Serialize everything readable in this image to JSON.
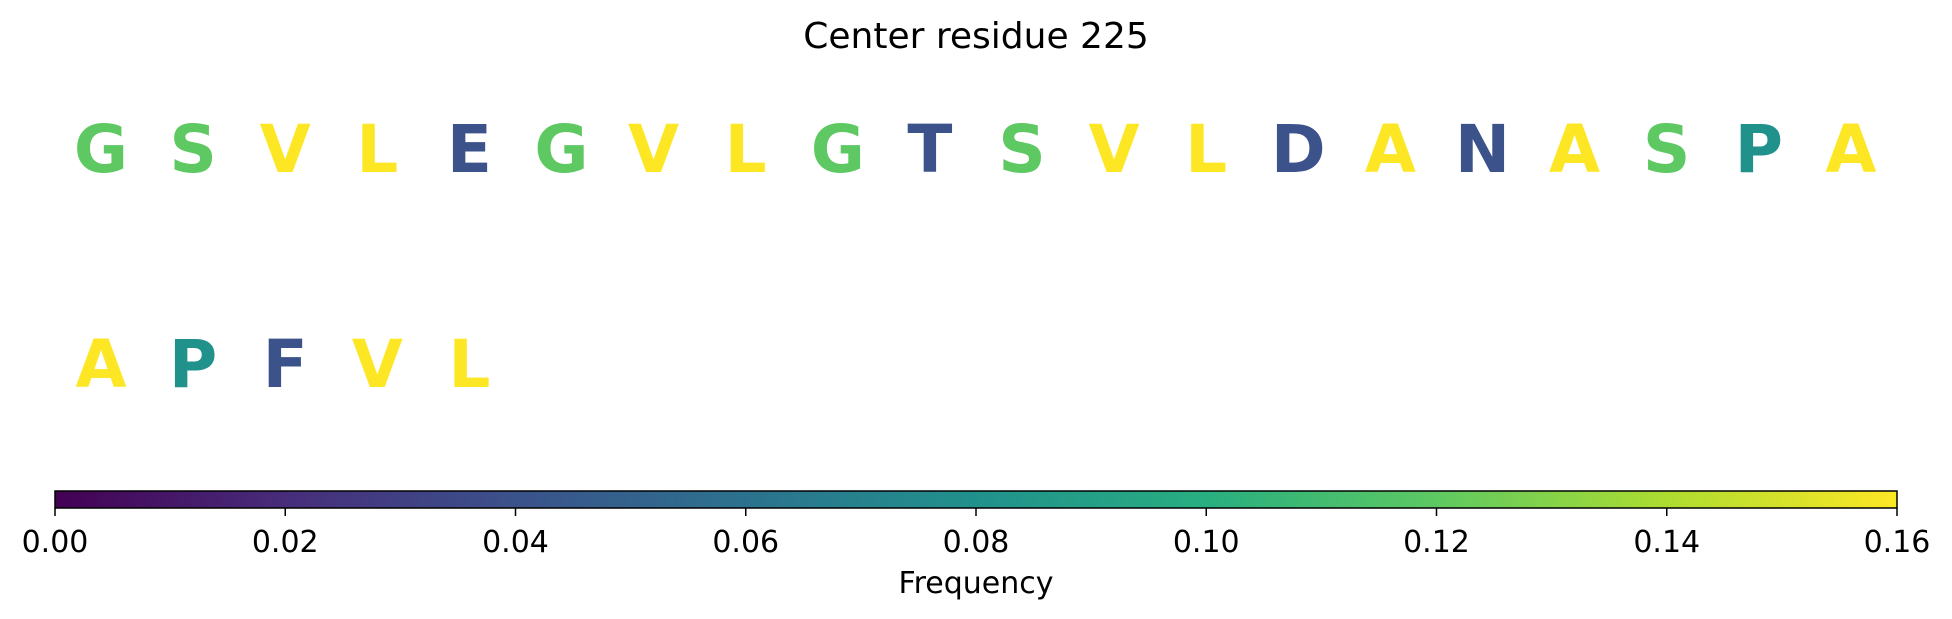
{
  "chart_data": {
    "type": "sequence-logo",
    "title": "Center residue 225",
    "residues": [
      {
        "letter": "G",
        "frequency": 0.12
      },
      {
        "letter": "S",
        "frequency": 0.12
      },
      {
        "letter": "V",
        "frequency": 0.16
      },
      {
        "letter": "L",
        "frequency": 0.16
      },
      {
        "letter": "E",
        "frequency": 0.04
      },
      {
        "letter": "G",
        "frequency": 0.12
      },
      {
        "letter": "V",
        "frequency": 0.16
      },
      {
        "letter": "L",
        "frequency": 0.16
      },
      {
        "letter": "G",
        "frequency": 0.12
      },
      {
        "letter": "T",
        "frequency": 0.04
      },
      {
        "letter": "S",
        "frequency": 0.12
      },
      {
        "letter": "V",
        "frequency": 0.16
      },
      {
        "letter": "L",
        "frequency": 0.16
      },
      {
        "letter": "D",
        "frequency": 0.04
      },
      {
        "letter": "A",
        "frequency": 0.16
      },
      {
        "letter": "N",
        "frequency": 0.04
      },
      {
        "letter": "A",
        "frequency": 0.16
      },
      {
        "letter": "S",
        "frequency": 0.12
      },
      {
        "letter": "P",
        "frequency": 0.08
      },
      {
        "letter": "A",
        "frequency": 0.16
      },
      {
        "letter": "A",
        "frequency": 0.16
      },
      {
        "letter": "P",
        "frequency": 0.08
      },
      {
        "letter": "F",
        "frequency": 0.04
      },
      {
        "letter": "V",
        "frequency": 0.16
      },
      {
        "letter": "L",
        "frequency": 0.16
      }
    ],
    "residues_per_row": 20,
    "colorbar": {
      "label": "Frequency",
      "range": [
        0,
        0.16
      ],
      "ticks": [
        "0.00",
        "0.02",
        "0.04",
        "0.06",
        "0.08",
        "0.10",
        "0.12",
        "0.14",
        "0.16"
      ],
      "colormap": "viridis",
      "orientation": "horizontal"
    }
  }
}
